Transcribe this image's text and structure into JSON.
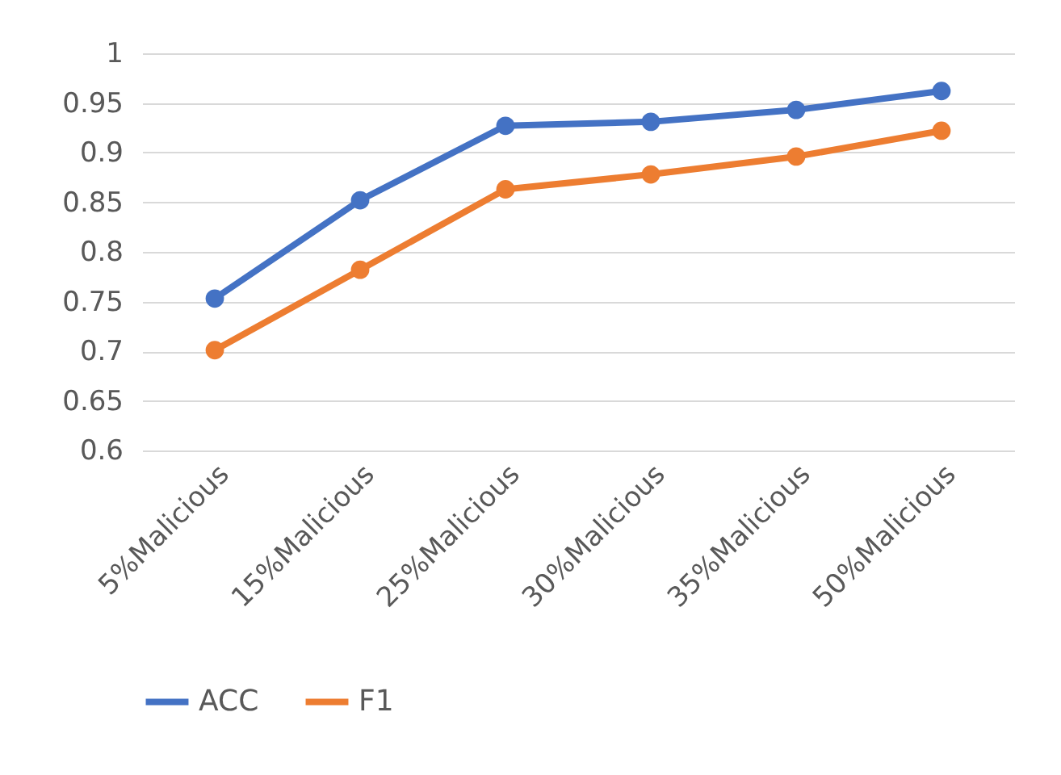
{
  "chart_data": {
    "type": "line",
    "categories": [
      "5%Malicious",
      "15%Malicious",
      "25%Malicious",
      "30%Malicious",
      "35%Malicious",
      "50%Malicious"
    ],
    "series": [
      {
        "name": "ACC",
        "color": "#4472c4",
        "values": [
          0.753,
          0.852,
          0.927,
          0.931,
          0.943,
          0.962
        ]
      },
      {
        "name": "F1",
        "color": "#ed7d31",
        "values": [
          0.701,
          0.782,
          0.863,
          0.878,
          0.896,
          0.922
        ]
      }
    ],
    "ylim": [
      0.6,
      1
    ],
    "yticks": [
      0.6,
      0.65,
      0.7,
      0.75,
      0.8,
      0.85,
      0.9,
      0.95,
      1
    ],
    "grid": "y",
    "legend": "bottom",
    "marker": "circle",
    "line_style": "solid"
  }
}
